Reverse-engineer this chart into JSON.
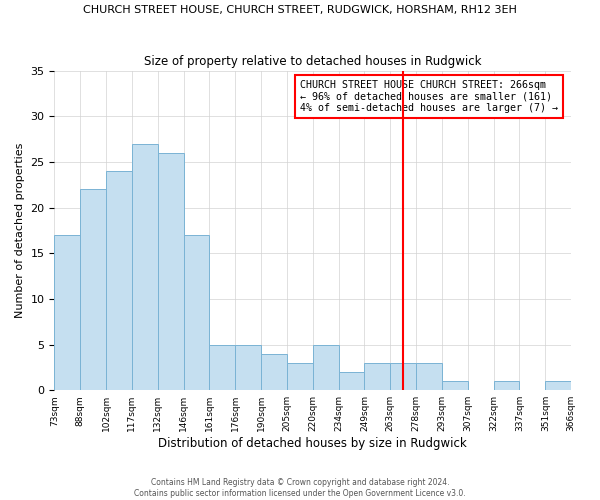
{
  "title": "CHURCH STREET HOUSE, CHURCH STREET, RUDGWICK, HORSHAM, RH12 3EH",
  "subtitle": "Size of property relative to detached houses in Rudgwick",
  "xlabel": "Distribution of detached houses by size in Rudgwick",
  "ylabel": "Number of detached properties",
  "bin_labels": [
    "73sqm",
    "88sqm",
    "102sqm",
    "117sqm",
    "132sqm",
    "146sqm",
    "161sqm",
    "176sqm",
    "190sqm",
    "205sqm",
    "220sqm",
    "234sqm",
    "249sqm",
    "263sqm",
    "278sqm",
    "293sqm",
    "307sqm",
    "322sqm",
    "337sqm",
    "351sqm",
    "366sqm"
  ],
  "bar_heights": [
    17,
    22,
    24,
    27,
    26,
    17,
    5,
    5,
    4,
    3,
    5,
    2,
    3,
    3,
    3,
    1,
    0,
    1,
    0,
    1
  ],
  "bar_color": "#c5dff0",
  "bar_edge_color": "#7ab3d4",
  "vline_x": 13.5,
  "vline_color": "red",
  "annotation_title": "CHURCH STREET HOUSE CHURCH STREET: 266sqm",
  "annotation_line1": "← 96% of detached houses are smaller (161)",
  "annotation_line2": "4% of semi-detached houses are larger (7) →",
  "annotation_box_color": "#ffffff",
  "annotation_border_color": "red",
  "ylim": [
    0,
    35
  ],
  "yticks": [
    0,
    5,
    10,
    15,
    20,
    25,
    30,
    35
  ],
  "footer1": "Contains HM Land Registry data © Crown copyright and database right 2024.",
  "footer2": "Contains public sector information licensed under the Open Government Licence v3.0."
}
